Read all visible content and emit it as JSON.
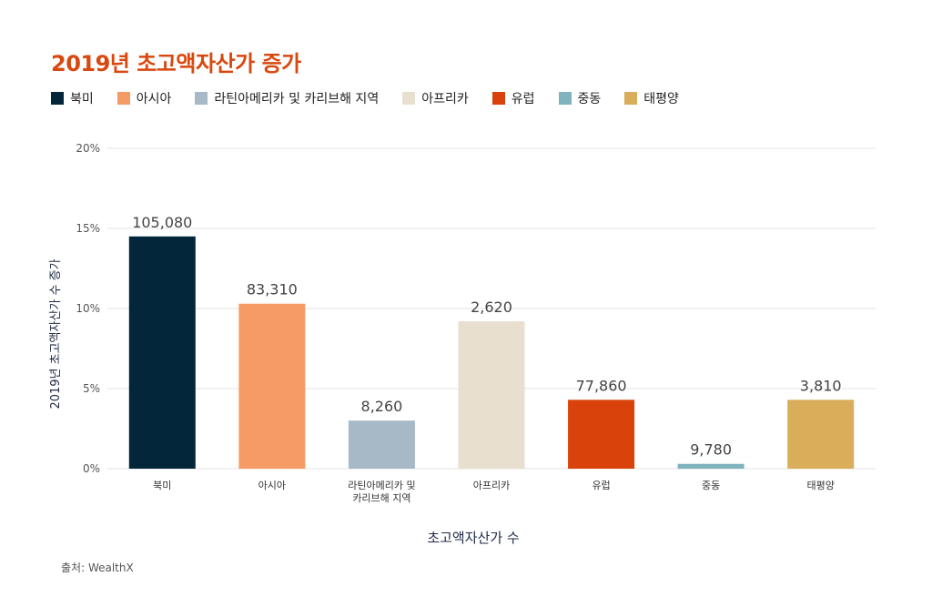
{
  "title": "2019년 초고액자산가 증가",
  "source": "출처: WealthX",
  "chart_data": {
    "type": "bar",
    "title": "2019년 초고액자산가 증가",
    "xlabel": "초고액자산가 수",
    "ylabel": "2019년 초고액자산가 수 증가",
    "ylim": [
      0,
      20
    ],
    "yticks": [
      0,
      5,
      10,
      15,
      20
    ],
    "ytick_labels": [
      "0%",
      "5%",
      "10%",
      "15%",
      "20%"
    ],
    "grid": true,
    "legend_position": "top",
    "categories": [
      "북미",
      "아시아",
      "라틴아메리카 및 카리브해 지역",
      "아프리카",
      "유럽",
      "중동",
      "태평양"
    ],
    "category_lines": [
      [
        "북미"
      ],
      [
        "아시아"
      ],
      [
        "라틴아메리카 및",
        "카리브해 지역"
      ],
      [
        "아프리카"
      ],
      [
        "유럽"
      ],
      [
        "중동"
      ],
      [
        "태평양"
      ]
    ],
    "values": [
      14.5,
      10.3,
      3.0,
      9.2,
      4.3,
      0.3,
      4.3
    ],
    "data_labels": [
      "105,080",
      "83,310",
      "8,260",
      "2,620",
      "77,860",
      "9,780",
      "3,810"
    ],
    "colors": [
      "#03263a",
      "#f59b66",
      "#a7b9c7",
      "#e9dfcf",
      "#d9420b",
      "#7fb3bd",
      "#d9ad59"
    ]
  }
}
